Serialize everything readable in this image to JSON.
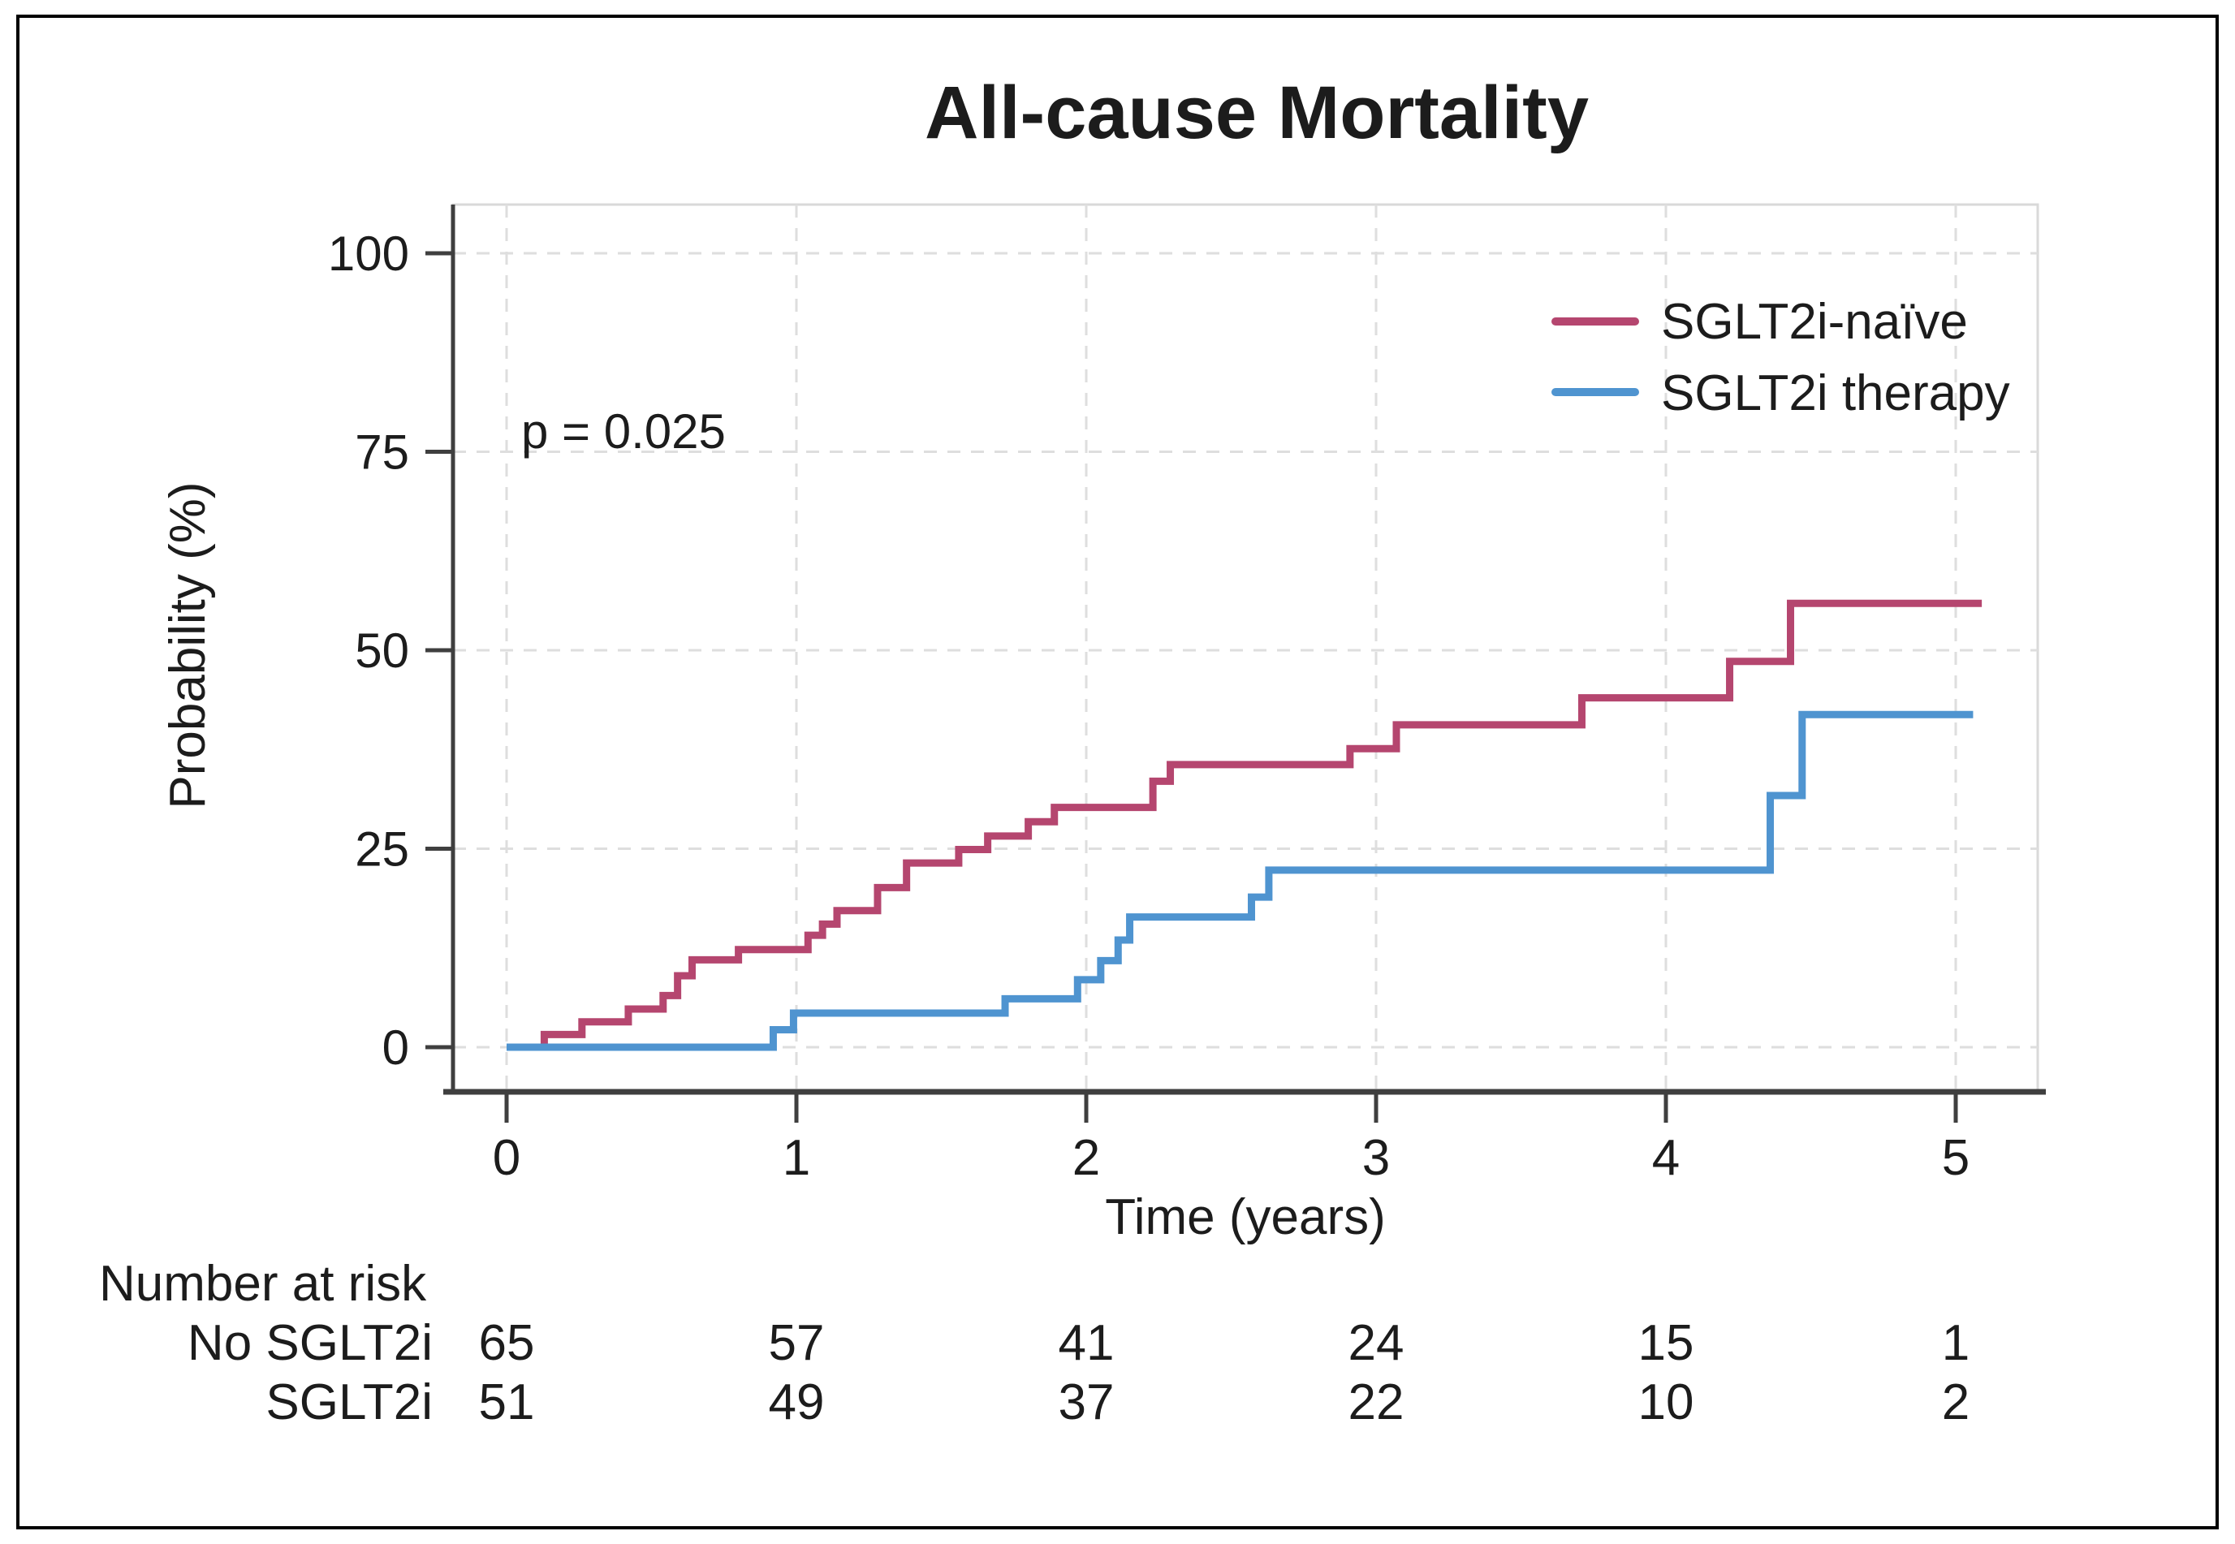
{
  "chart_data": {
    "type": "line",
    "subtype": "kaplan-meier-step-curve",
    "title": "All-cause Mortality",
    "xlabel": "Time (years)",
    "ylabel": "Probability (%)",
    "annotation": "p = 0.025",
    "xlim": [
      -0.2,
      5.3
    ],
    "ylim": [
      -5,
      106
    ],
    "x_ticks": [
      0,
      1,
      2,
      3,
      4,
      5
    ],
    "y_ticks": [
      0,
      25,
      50,
      75,
      100
    ],
    "grid": true,
    "grid_style": "dashed-light-gray",
    "legend_position": "top-right",
    "series": [
      {
        "name": "SGLT2i-naïve",
        "color": "#b5466f",
        "end_t": 5.09,
        "points": [
          [
            0,
            0
          ],
          [
            0.13,
            1.6
          ],
          [
            0.26,
            3.2
          ],
          [
            0.42,
            4.8
          ],
          [
            0.54,
            6.5
          ],
          [
            0.59,
            9.0
          ],
          [
            0.64,
            11.0
          ],
          [
            0.8,
            12.3
          ],
          [
            1.04,
            14.1
          ],
          [
            1.09,
            15.5
          ],
          [
            1.14,
            17.2
          ],
          [
            1.28,
            20.1
          ],
          [
            1.38,
            23.2
          ],
          [
            1.56,
            24.9
          ],
          [
            1.66,
            26.6
          ],
          [
            1.8,
            28.4
          ],
          [
            1.89,
            30.2
          ],
          [
            2.23,
            33.5
          ],
          [
            2.29,
            35.6
          ],
          [
            2.91,
            37.6
          ],
          [
            3.07,
            40.6
          ],
          [
            3.71,
            44.0
          ],
          [
            4.22,
            48.6
          ],
          [
            4.43,
            55.9
          ]
        ]
      },
      {
        "name": "SGLT2i therapy",
        "color": "#4f94d0",
        "end_t": 5.06,
        "points": [
          [
            0,
            0
          ],
          [
            0.92,
            2.2
          ],
          [
            0.99,
            4.3
          ],
          [
            1.72,
            6.1
          ],
          [
            1.97,
            8.5
          ],
          [
            2.05,
            10.9
          ],
          [
            2.11,
            13.5
          ],
          [
            2.15,
            16.4
          ],
          [
            2.57,
            18.9
          ],
          [
            2.63,
            22.3
          ],
          [
            4.36,
            31.7
          ],
          [
            4.47,
            41.9
          ]
        ]
      }
    ],
    "number_at_risk": {
      "header": "Number at risk",
      "time_points": [
        0,
        1,
        2,
        3,
        4,
        5
      ],
      "rows": [
        {
          "label": "No SGLT2i",
          "values": [
            65,
            57,
            41,
            24,
            15,
            1
          ]
        },
        {
          "label": "SGLT2i",
          "values": [
            51,
            49,
            37,
            22,
            10,
            2
          ]
        }
      ]
    }
  }
}
